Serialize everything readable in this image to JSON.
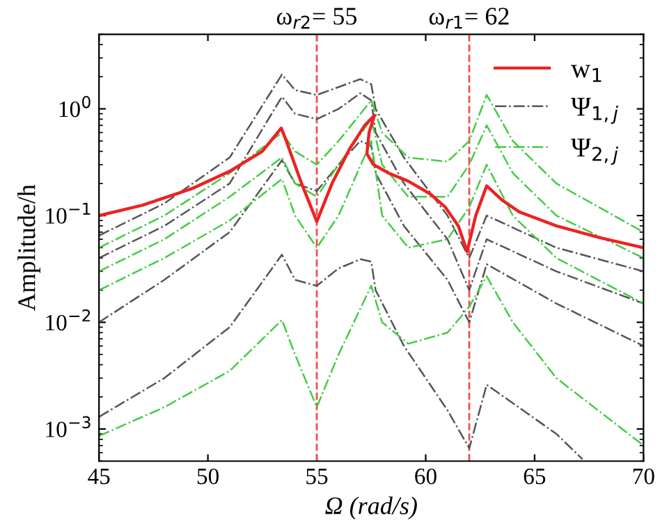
{
  "chart_data": {
    "type": "line",
    "xlabel": "Ω (rad/s)",
    "ylabel": "Amplitude/h",
    "log": "y",
    "xlim": [
      45,
      70
    ],
    "ylim": [
      0.0005,
      5
    ],
    "xticks": [
      45,
      50,
      55,
      60,
      65,
      70
    ],
    "yticks": [
      {
        "value": 0.001,
        "label": "10$^{−3}$"
      },
      {
        "value": 0.01,
        "label": "10$^{−2}$"
      },
      {
        "value": 0.1,
        "label": "10$^{−1}$"
      },
      {
        "value": 1,
        "label": "10$^{0}$"
      }
    ],
    "grid": false,
    "legend": "top right",
    "ref_lines": [
      {
        "axis": "x",
        "value": 55,
        "label": "ω$_{r2}$= 55",
        "color": "#f05050",
        "line_style": "dashed"
      },
      {
        "axis": "x",
        "value": 62,
        "label": "ω$_{r1}$= 62",
        "color": "#f05050",
        "line_style": "dashed"
      }
    ],
    "series": [
      {
        "name": "Ψ$_{1,j}$",
        "color": "#555555",
        "line_style": "dashdot",
        "x": [
          45,
          48,
          51,
          53.4,
          54,
          55,
          56,
          57,
          57.5,
          57.7,
          59,
          61,
          62,
          62.8,
          66,
          70
        ],
        "values": [
          0.065,
          0.13,
          0.35,
          2.1,
          1.5,
          1.35,
          1.6,
          1.9,
          1.7,
          1.0,
          0.35,
          0.1,
          0.04,
          0.1,
          0.05,
          0.03
        ]
      },
      {
        "color": "#555555",
        "line_style": "dashdot",
        "x": [
          45,
          48,
          51,
          53.4,
          54,
          55,
          56,
          57,
          57.5,
          57.7,
          59,
          61,
          62,
          62.8,
          66,
          70
        ],
        "values": [
          0.04,
          0.08,
          0.2,
          1.3,
          0.9,
          0.8,
          1.0,
          1.4,
          1.2,
          0.6,
          0.2,
          0.06,
          0.02,
          0.06,
          0.03,
          0.015
        ]
      },
      {
        "color": "#555555",
        "line_style": "dashdot",
        "x": [
          45,
          48,
          51,
          53.4,
          54,
          55,
          56,
          57,
          57.5,
          57.7,
          59,
          61,
          62,
          62.8,
          66,
          70
        ],
        "values": [
          0.01,
          0.025,
          0.07,
          0.33,
          0.2,
          0.17,
          0.3,
          0.5,
          0.45,
          0.25,
          0.08,
          0.025,
          0.01,
          0.035,
          0.015,
          0.006
        ]
      },
      {
        "color": "#555555",
        "line_style": "dashdot",
        "x": [
          45,
          48,
          51,
          53.4,
          54,
          55,
          56,
          57,
          57.5,
          57.7,
          59,
          61,
          62,
          62.8,
          66,
          67.2
        ],
        "values": [
          0.0013,
          0.003,
          0.009,
          0.043,
          0.025,
          0.022,
          0.032,
          0.039,
          0.037,
          0.02,
          0.006,
          0.0015,
          0.00066,
          0.0026,
          0.0009,
          0.00052
        ]
      },
      {
        "name": "Ψ$_{2,j}$",
        "color": "#44cc44",
        "line_style": "dashdot",
        "x": [
          45,
          48,
          51,
          53.4,
          54,
          55,
          56,
          57.5,
          58,
          59.2,
          61,
          62,
          62.8,
          64,
          66,
          70
        ],
        "values": [
          0.05,
          0.1,
          0.25,
          0.6,
          0.4,
          0.3,
          0.5,
          1.2,
          0.6,
          0.35,
          0.32,
          0.5,
          1.35,
          0.5,
          0.2,
          0.07
        ]
      },
      {
        "color": "#44cc44",
        "line_style": "dashdot",
        "x": [
          45,
          48,
          51,
          53.4,
          54,
          55,
          56,
          57.5,
          58,
          59.2,
          61,
          62,
          62.8,
          64,
          66,
          70
        ],
        "values": [
          0.03,
          0.06,
          0.15,
          0.35,
          0.2,
          0.15,
          0.3,
          0.8,
          0.3,
          0.15,
          0.15,
          0.3,
          0.7,
          0.25,
          0.1,
          0.04
        ]
      },
      {
        "color": "#44cc44",
        "line_style": "dashdot",
        "x": [
          45,
          48,
          51,
          53.4,
          54,
          55,
          56,
          57.5,
          58,
          59.2,
          61,
          62,
          62.8,
          64,
          66,
          70
        ],
        "values": [
          0.02,
          0.04,
          0.09,
          0.22,
          0.1,
          0.05,
          0.1,
          0.5,
          0.1,
          0.05,
          0.06,
          0.12,
          0.3,
          0.1,
          0.04,
          0.015
        ]
      },
      {
        "color": "#44cc44",
        "line_style": "dashdot",
        "x": [
          45,
          48,
          51,
          53.4,
          54,
          55,
          56,
          57.5,
          58,
          59.2,
          61,
          62,
          62.8,
          64,
          66,
          70
        ],
        "values": [
          0.00086,
          0.0016,
          0.0035,
          0.0105,
          0.005,
          0.0016,
          0.005,
          0.022,
          0.01,
          0.0063,
          0.008,
          0.014,
          0.027,
          0.01,
          0.003,
          0.0007
        ]
      },
      {
        "name": "w$_{1}$",
        "color": "#ee2222",
        "line_style": "solid",
        "x": [
          45,
          47,
          49.3,
          51,
          52.5,
          53.37,
          53.6,
          54.3,
          55,
          55.7,
          56.5,
          57.2,
          57.65,
          57.4,
          57.3,
          57.6,
          58.3,
          59.2,
          60.2,
          60.9,
          61.5,
          61.9,
          62.3,
          62.8,
          63.5,
          64.3,
          66,
          68,
          70
        ],
        "values": [
          0.1,
          0.125,
          0.18,
          0.26,
          0.4,
          0.66,
          0.5,
          0.2,
          0.088,
          0.2,
          0.42,
          0.7,
          0.87,
          0.6,
          0.38,
          0.3,
          0.25,
          0.21,
          0.16,
          0.12,
          0.08,
          0.046,
          0.1,
          0.19,
          0.14,
          0.108,
          0.08,
          0.062,
          0.05
        ]
      }
    ]
  }
}
